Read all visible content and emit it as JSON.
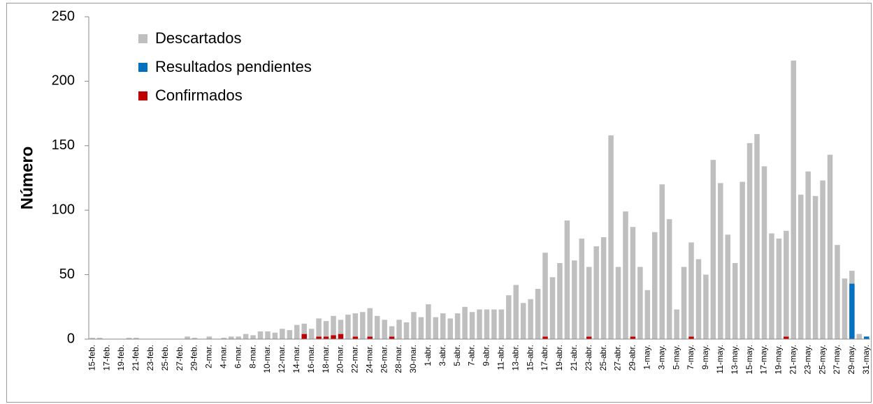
{
  "chart_data": {
    "type": "stacked-bar",
    "y_label": "Número",
    "categories": [
      "15-feb.",
      null,
      "17-feb.",
      null,
      "19-feb.",
      null,
      "21-feb.",
      null,
      "23-feb.",
      null,
      "25-feb.",
      null,
      "27-feb.",
      null,
      "29-feb.",
      null,
      "2-mar.",
      null,
      "4-mar.",
      null,
      "6-mar.",
      null,
      "8-mar.",
      null,
      "10-mar.",
      null,
      "12-mar.",
      null,
      "14-mar.",
      null,
      "16-mar.",
      null,
      "18-mar.",
      null,
      "20-mar.",
      null,
      "22-mar.",
      null,
      "24-mar.",
      null,
      "26-mar.",
      null,
      "28-mar.",
      null,
      "30-mar.",
      null,
      "1-abr.",
      null,
      "3-abr.",
      null,
      "5-abr.",
      null,
      "7-abr.",
      null,
      "9-abr.",
      null,
      "11-abr.",
      null,
      "13-abr.",
      null,
      "15-abr.",
      null,
      "17-abr.",
      null,
      "19-abr.",
      null,
      "21-abr.",
      null,
      "23-abr.",
      null,
      "25-abr.",
      null,
      "27-abr.",
      null,
      "29-abr.",
      null,
      "1-may.",
      null,
      "3-may.",
      null,
      "5-may.",
      null,
      "7-may.",
      null,
      "9-may.",
      null,
      "11-may.",
      null,
      "13-may.",
      null,
      "15-may.",
      null,
      "17-may.",
      null,
      "19-may.",
      null,
      "21-may.",
      null,
      "23-may.",
      null,
      "25-may.",
      null,
      "27-may.",
      null,
      "29-may.",
      null,
      "31-may."
    ],
    "series": [
      {
        "name": "Confirmados",
        "color": "#c00000",
        "values": [
          0,
          0,
          0,
          0,
          0,
          0,
          0,
          0,
          0,
          0,
          0,
          0,
          0,
          0,
          0,
          0,
          0,
          0,
          0,
          0,
          0,
          0,
          0,
          0,
          0,
          0,
          0,
          0,
          0,
          4,
          0,
          2,
          2,
          3,
          4,
          0,
          2,
          0,
          2,
          0,
          0,
          2,
          0,
          0,
          0,
          0,
          0,
          0,
          0,
          0,
          0,
          0,
          0,
          0,
          0,
          0,
          0,
          0,
          0,
          0,
          0,
          0,
          2,
          0,
          0,
          0,
          0,
          0,
          2,
          0,
          0,
          0,
          0,
          0,
          2,
          0,
          0,
          0,
          0,
          0,
          0,
          0,
          2,
          0,
          0,
          0,
          0,
          0,
          0,
          0,
          0,
          0,
          0,
          0,
          0,
          2,
          0,
          0,
          0,
          0,
          0,
          0,
          0,
          0,
          0,
          0,
          0
        ]
      },
      {
        "name": "Resultados pendientes",
        "color": "#0070c0",
        "values": [
          0,
          0,
          0,
          0,
          0,
          0,
          0,
          0,
          0,
          0,
          0,
          0,
          0,
          0,
          0,
          0,
          0,
          0,
          0,
          0,
          0,
          0,
          0,
          0,
          0,
          0,
          0,
          0,
          0,
          0,
          0,
          0,
          0,
          0,
          0,
          0,
          0,
          0,
          0,
          0,
          0,
          0,
          0,
          0,
          0,
          0,
          0,
          0,
          0,
          0,
          0,
          0,
          0,
          0,
          0,
          0,
          0,
          0,
          0,
          0,
          0,
          0,
          0,
          0,
          0,
          0,
          0,
          0,
          0,
          0,
          0,
          0,
          0,
          0,
          0,
          0,
          0,
          0,
          0,
          0,
          0,
          0,
          0,
          0,
          0,
          0,
          0,
          0,
          0,
          0,
          0,
          0,
          0,
          0,
          0,
          0,
          0,
          0,
          0,
          0,
          0,
          0,
          0,
          0,
          43,
          0,
          2
        ]
      },
      {
        "name": "Descartados",
        "color": "#bfbfbf",
        "values": [
          1,
          1,
          0,
          0,
          0,
          1,
          1,
          0,
          0,
          0,
          0,
          0,
          0,
          2,
          1,
          0,
          2,
          0,
          1,
          2,
          2,
          4,
          3,
          6,
          6,
          5,
          8,
          7,
          11,
          8,
          8,
          14,
          12,
          15,
          11,
          19,
          18,
          21,
          22,
          18,
          15,
          8,
          15,
          13,
          21,
          17,
          27,
          17,
          20,
          16,
          20,
          25,
          21,
          23,
          23,
          23,
          23,
          34,
          42,
          28,
          31,
          39,
          65,
          48,
          59,
          92,
          61,
          78,
          54,
          72,
          79,
          158,
          56,
          99,
          85,
          56,
          38,
          83,
          120,
          93,
          23,
          56,
          73,
          62,
          50,
          139,
          121,
          81,
          59,
          122,
          152,
          159,
          134,
          82,
          78,
          82,
          216,
          112,
          130,
          111,
          123,
          143,
          73,
          47,
          10,
          4,
          0
        ]
      }
    ],
    "ylim": [
      0,
      250
    ],
    "yticks": [
      0,
      50,
      100,
      150,
      200,
      250
    ],
    "legend": "top-left"
  }
}
